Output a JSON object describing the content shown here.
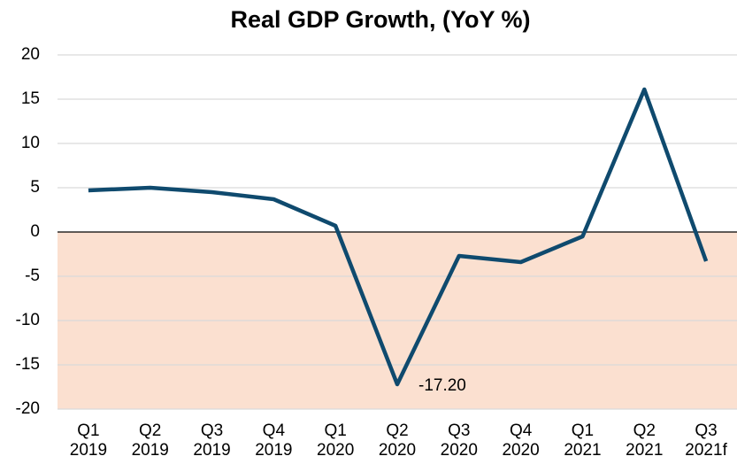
{
  "chart_data": {
    "type": "line",
    "title": "Real GDP Growth, (YoY %)",
    "categories": [
      "Q1 2019",
      "Q2 2019",
      "Q3 2019",
      "Q4 2019",
      "Q1 2020",
      "Q2 2020",
      "Q3 2020",
      "Q4 2020",
      "Q1 2021",
      "Q2 2021",
      "Q3 2021f"
    ],
    "values": [
      4.7,
      5.0,
      4.5,
      3.7,
      0.7,
      -17.2,
      -2.7,
      -3.4,
      -0.5,
      16.1,
      -3.3
    ],
    "value_labels": [
      null,
      null,
      null,
      null,
      null,
      "-17.20",
      null,
      null,
      null,
      null,
      null
    ],
    "color": "#0f4a6e",
    "negative_shade": "#fbe0d0",
    "ylim": [
      -20,
      20
    ],
    "yticks": [
      -20,
      -15,
      -10,
      -5,
      0,
      5,
      10,
      15,
      20
    ],
    "grid": true
  }
}
